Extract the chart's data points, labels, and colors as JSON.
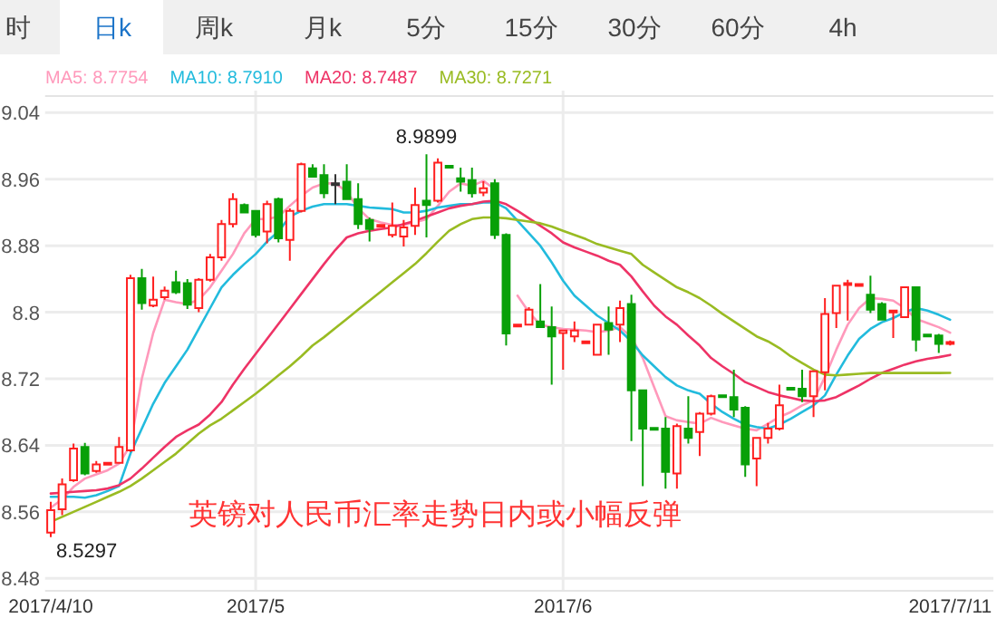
{
  "chart_data": {
    "type": "candlestick",
    "categories": [
      "2017/4/10",
      null,
      null,
      null,
      null,
      null,
      null,
      null,
      null,
      null,
      null,
      null,
      null,
      null,
      null,
      null,
      null,
      null,
      "2017/5",
      null,
      null,
      null,
      null,
      null,
      null,
      null,
      null,
      null,
      null,
      null,
      null,
      null,
      null,
      null,
      null,
      null,
      null,
      null,
      null,
      null,
      null,
      null,
      null,
      null,
      null,
      "2017/6",
      null,
      null,
      null,
      null,
      null,
      null,
      null,
      null,
      null,
      null,
      null,
      null,
      null,
      null,
      null,
      null,
      null,
      null,
      null,
      null,
      null,
      null,
      null,
      null,
      null,
      null,
      null,
      null,
      null,
      null,
      null,
      null,
      null,
      "2017/7/11"
    ],
    "ohlc": [
      [
        8.535,
        8.572,
        8.5297,
        8.562
      ],
      [
        8.563,
        8.6,
        8.556,
        8.593
      ],
      [
        8.598,
        8.642,
        8.596,
        8.636
      ],
      [
        8.638,
        8.643,
        8.604,
        8.606
      ],
      [
        8.609,
        8.621,
        8.607,
        8.617
      ],
      [
        8.618,
        8.62,
        8.617,
        8.619
      ],
      [
        8.619,
        8.65,
        8.618,
        8.638
      ],
      [
        8.634,
        8.845,
        8.632,
        8.841
      ],
      [
        8.841,
        8.852,
        8.803,
        8.811
      ],
      [
        8.808,
        8.843,
        8.806,
        8.815
      ],
      [
        8.818,
        8.831,
        8.815,
        8.826
      ],
      [
        8.836,
        8.85,
        8.822,
        8.824
      ],
      [
        8.835,
        8.84,
        8.804,
        8.809
      ],
      [
        8.805,
        8.841,
        8.8,
        8.839
      ],
      [
        8.839,
        8.87,
        8.837,
        8.866
      ],
      [
        8.866,
        8.911,
        8.862,
        8.906
      ],
      [
        8.906,
        8.943,
        8.902,
        8.936
      ],
      [
        8.929,
        8.931,
        8.919,
        8.92
      ],
      [
        8.922,
        8.923,
        8.89,
        8.893
      ],
      [
        8.897,
        8.934,
        8.883,
        8.93
      ],
      [
        8.936,
        8.938,
        8.884,
        8.889
      ],
      [
        8.887,
        8.925,
        8.862,
        8.922
      ],
      [
        8.922,
        8.98,
        8.92,
        8.978
      ],
      [
        8.973,
        8.978,
        8.962,
        8.963
      ],
      [
        8.965,
        8.978,
        8.937,
        8.943
      ],
      [
        8.955,
        8.966,
        8.93,
        8.955
      ],
      [
        8.957,
        8.978,
        8.935,
        8.936
      ],
      [
        8.936,
        8.955,
        8.9,
        8.906
      ],
      [
        8.911,
        8.914,
        8.885,
        8.9
      ],
      [
        8.904,
        8.906,
        8.903,
        8.905
      ],
      [
        8.893,
        8.932,
        8.89,
        8.904
      ],
      [
        8.891,
        8.911,
        8.879,
        8.902
      ],
      [
        8.904,
        8.95,
        8.893,
        8.929
      ],
      [
        8.934,
        8.9899,
        8.89,
        8.929
      ],
      [
        8.934,
        8.985,
        8.932,
        8.98
      ],
      [
        8.976,
        8.977,
        8.973,
        8.974
      ],
      [
        8.961,
        8.974,
        8.945,
        8.957
      ],
      [
        8.959,
        8.974,
        8.938,
        8.943
      ],
      [
        8.944,
        8.9575,
        8.9396,
        8.949
      ],
      [
        8.955,
        8.96,
        8.888,
        8.893
      ],
      [
        8.893,
        8.895,
        8.76,
        8.7745
      ],
      [
        8.783,
        8.785,
        8.783,
        8.785
      ],
      [
        8.785,
        8.806,
        8.784,
        8.803
      ],
      [
        8.789,
        8.834,
        8.782,
        8.782
      ],
      [
        8.782,
        8.807,
        8.713,
        8.771
      ],
      [
        8.775,
        8.779,
        8.731,
        8.778
      ],
      [
        8.771,
        8.789,
        8.764,
        8.778
      ],
      [
        8.763,
        8.765,
        8.763,
        8.765
      ],
      [
        8.749,
        8.786,
        8.749,
        8.785
      ],
      [
        8.787,
        8.807,
        8.749,
        8.779
      ],
      [
        8.785,
        8.814,
        8.764,
        8.805
      ],
      [
        8.81,
        8.821,
        8.645,
        8.706
      ],
      [
        8.706,
        8.706,
        8.591,
        8.66
      ],
      [
        8.661,
        8.662,
        8.658,
        8.659
      ],
      [
        8.66,
        8.674,
        8.588,
        8.608
      ],
      [
        8.606,
        8.666,
        8.588,
        8.663
      ],
      [
        8.66,
        8.699,
        8.642,
        8.649
      ],
      [
        8.656,
        8.68,
        8.627,
        8.678
      ],
      [
        8.678,
        8.701,
        8.676,
        8.699
      ],
      [
        8.7,
        8.701,
        8.697,
        8.698
      ],
      [
        8.698,
        8.731,
        8.674,
        8.683
      ],
      [
        8.685,
        8.687,
        8.602,
        8.617
      ],
      [
        8.624,
        8.649,
        8.591,
        8.649
      ],
      [
        8.649,
        8.667,
        8.642,
        8.66
      ],
      [
        8.66,
        8.713,
        8.658,
        8.688
      ],
      [
        8.709,
        8.71,
        8.707,
        8.708
      ],
      [
        8.708,
        8.731,
        8.692,
        8.699
      ],
      [
        8.699,
        8.729,
        8.674,
        8.729
      ],
      [
        8.728,
        8.817,
        8.706,
        8.798
      ],
      [
        8.799,
        8.832,
        8.781,
        8.832
      ],
      [
        8.833,
        8.839,
        8.79,
        8.835
      ],
      [
        8.833,
        8.835,
        8.833,
        8.834
      ],
      [
        8.821,
        8.844,
        8.799,
        8.803
      ],
      [
        8.81,
        8.812,
        8.791,
        8.791
      ],
      [
        8.8,
        8.803,
        8.769,
        8.802
      ],
      [
        8.794,
        8.831,
        8.793,
        8.83
      ],
      [
        8.83,
        8.831,
        8.753,
        8.767
      ],
      [
        8.773,
        8.774,
        8.771,
        8.772
      ],
      [
        8.772,
        8.774,
        8.751,
        8.762
      ],
      [
        8.763,
        8.766,
        8.76,
        8.764
      ]
    ],
    "series": [
      {
        "name": "MA5: 8.7754",
        "type": "line",
        "color": "#ff99bb",
        "values": [
          8.565,
          8.575,
          8.59,
          8.6,
          8.605,
          8.61,
          8.618,
          8.64,
          8.72,
          8.775,
          8.815,
          8.812,
          8.81,
          8.815,
          8.83,
          8.85,
          8.87,
          8.895,
          8.912,
          8.912,
          8.915,
          8.928,
          8.94,
          8.95,
          8.955,
          8.955,
          8.945,
          8.925,
          8.912,
          8.908,
          8.905,
          8.905,
          8.908,
          8.912,
          8.928,
          8.945,
          8.955,
          8.952,
          8.958,
          8.948,
          null,
          8.82,
          8.8,
          8.785,
          8.782,
          8.78,
          8.779,
          8.778,
          8.776,
          8.778,
          8.782,
          8.77,
          8.745,
          8.71,
          8.675,
          8.67,
          8.668,
          8.666,
          8.673,
          8.668,
          8.664,
          8.66,
          8.658,
          8.666,
          8.674,
          8.68,
          8.688,
          8.694,
          8.722,
          8.755,
          8.785,
          8.805,
          8.817,
          8.816,
          8.814,
          8.805,
          8.792,
          8.787,
          8.782,
          8.7754
        ]
      },
      {
        "name": "MA10: 8.7910",
        "type": "line",
        "color": "#22bbdd",
        "values": [
          8.578,
          8.578,
          8.578,
          8.577,
          8.58,
          8.585,
          8.591,
          8.63,
          8.66,
          8.69,
          8.715,
          8.735,
          8.755,
          8.78,
          8.805,
          8.83,
          8.845,
          8.858,
          8.87,
          8.885,
          8.897,
          8.915,
          8.922,
          8.927,
          8.93,
          8.93,
          8.93,
          8.928,
          8.926,
          8.925,
          8.924,
          8.92,
          8.92,
          8.922,
          8.926,
          8.928,
          8.93,
          8.93,
          8.932,
          8.932,
          8.925,
          8.91,
          8.895,
          8.88,
          8.86,
          8.838,
          8.82,
          8.808,
          8.796,
          8.787,
          8.778,
          8.765,
          8.748,
          8.735,
          8.722,
          8.712,
          8.706,
          8.702,
          8.69,
          8.68,
          8.672,
          8.665,
          8.662,
          8.66,
          8.665,
          8.672,
          8.68,
          8.688,
          8.7,
          8.725,
          8.748,
          8.768,
          8.78,
          8.788,
          8.793,
          8.8,
          8.805,
          8.802,
          8.797,
          8.791
        ]
      },
      {
        "name": "MA20: 8.7487",
        "type": "line",
        "color": "#ee3366",
        "values": [
          8.582,
          8.583,
          8.584,
          8.585,
          8.586,
          8.588,
          8.592,
          8.6,
          8.612,
          8.625,
          8.638,
          8.65,
          8.658,
          8.665,
          8.677,
          8.692,
          8.713,
          8.732,
          8.75,
          8.768,
          8.786,
          8.804,
          8.822,
          8.84,
          8.858,
          8.875,
          8.89,
          8.895,
          8.898,
          8.9,
          8.902,
          8.906,
          8.91,
          8.915,
          8.92,
          8.925,
          8.928,
          8.93,
          8.933,
          8.934,
          8.93,
          8.922,
          8.913,
          8.904,
          8.895,
          8.884,
          8.878,
          8.873,
          8.868,
          8.862,
          8.857,
          8.843,
          8.825,
          8.808,
          8.795,
          8.785,
          8.772,
          8.76,
          8.745,
          8.735,
          8.726,
          8.716,
          8.71,
          8.704,
          8.7,
          8.697,
          8.694,
          8.693,
          8.694,
          8.698,
          8.705,
          8.712,
          8.72,
          8.727,
          8.732,
          8.737,
          8.741,
          8.744,
          8.746,
          8.7487
        ]
      },
      {
        "name": "MA30: 8.7271",
        "type": "line",
        "color": "#99bb22",
        "values": [
          8.548,
          8.554,
          8.56,
          8.566,
          8.572,
          8.578,
          8.584,
          8.591,
          8.6,
          8.61,
          8.62,
          8.63,
          8.642,
          8.654,
          8.664,
          8.672,
          8.682,
          8.692,
          8.702,
          8.713,
          8.724,
          8.735,
          8.747,
          8.76,
          8.77,
          8.781,
          8.792,
          8.803,
          8.814,
          8.825,
          8.836,
          8.847,
          8.858,
          8.871,
          8.885,
          8.898,
          8.906,
          8.912,
          8.914,
          8.914,
          8.913,
          8.911,
          8.909,
          8.907,
          8.903,
          8.898,
          8.893,
          8.888,
          8.882,
          8.878,
          8.874,
          8.87,
          8.857,
          8.848,
          8.839,
          8.83,
          8.824,
          8.817,
          8.808,
          8.798,
          8.789,
          8.78,
          8.771,
          8.765,
          8.757,
          8.747,
          8.739,
          8.731,
          8.725,
          8.724,
          8.725,
          8.726,
          8.727,
          8.727,
          8.727,
          8.727,
          8.727,
          8.727,
          8.727,
          8.7271
        ]
      }
    ],
    "ylim": [
      8.465,
      9.06
    ],
    "yticks": [
      8.48,
      8.56,
      8.64,
      8.72,
      8.8,
      8.88,
      8.96,
      9.04
    ],
    "grid": true,
    "legend": "top left",
    "marker": "none",
    "annotations": [
      "时",
      "日k",
      "周k",
      "月k",
      "5分",
      "15分",
      "30分",
      "60分",
      "4h",
      "英镑对人民币汇率走势日内或小幅反弹",
      "8.5297",
      {
        "text": "8.9899",
        "y": 8.9899
      }
    ]
  }
}
